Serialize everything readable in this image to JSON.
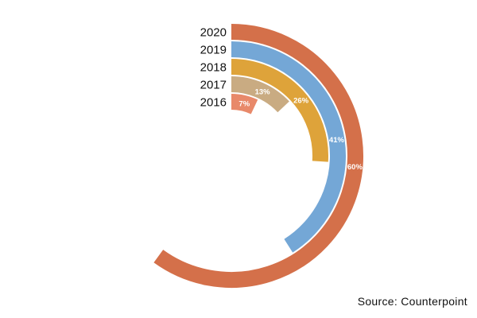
{
  "chart_data": {
    "type": "radial-bar",
    "categories": [
      "2016",
      "2017",
      "2018",
      "2019",
      "2020"
    ],
    "values": [
      7,
      13,
      26,
      41,
      60
    ],
    "labels": [
      "7%",
      "13%",
      "26%",
      "41%",
      "60%"
    ],
    "colors": [
      "#E8896A",
      "#C9AB82",
      "#DEA33A",
      "#74A7D6",
      "#D4704A"
    ],
    "range": [
      0,
      100
    ],
    "source": "Source: Counterpoint"
  }
}
